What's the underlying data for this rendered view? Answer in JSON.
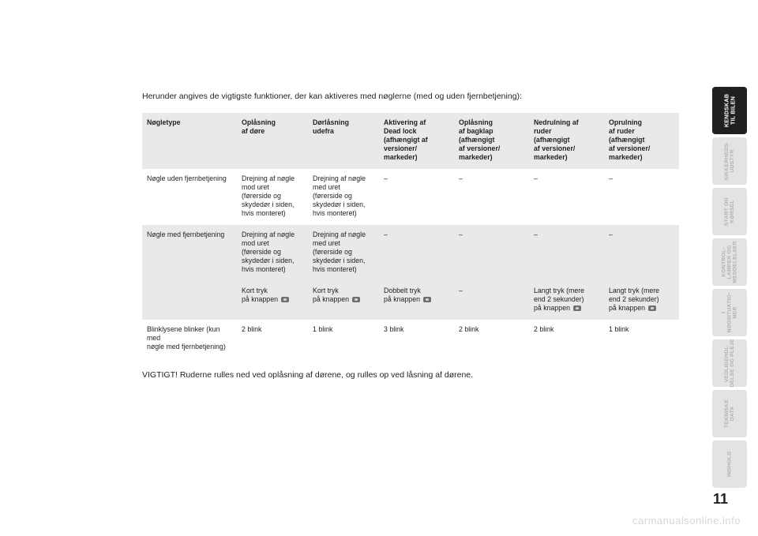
{
  "intro": "Herunder angives de vigtigste funktioner, der kan aktiveres med nøglerne (med og uden fjernbetjening):",
  "outro": "VIGTIGT! Ruderne rulles ned ved oplåsning af dørene, og rulles op ved låsning af dørene.",
  "page_number": "11",
  "watermark": "carmanualsonline.info",
  "table": {
    "headers": [
      "Nøgletype",
      "Oplåsning\naf døre",
      "Dørlåsning\nudefra",
      "Aktivering af\nDead lock\n(afhængigt af\nversioner/\nmarkeder)",
      "Oplåsning\naf bagklap\n(afhængigt\naf versioner/\nmarkeder)",
      "Nedrulning af\nruder\n(afhængigt\naf versioner/\nmarkeder)",
      "Oprulning\naf ruder\n(afhængigt\naf versioner/\nmarkeder)"
    ],
    "rows": [
      {
        "label": "Nøgle uden fjernbetjening",
        "cells": [
          "Drejning af nøgle\nmod uret\n(førerside og\nskydedør i siden,\nhvis monteret)",
          "Drejning af nøgle\nmed uret\n(førerside og\nskydedør i siden,\nhvis monteret)",
          "–",
          "–",
          "–",
          "–"
        ]
      },
      {
        "label": "",
        "cells": [
          "Drejning af nøgle\nmod uret\n(førerside og\nskydedør i siden,\nhvis monteret)",
          "Drejning af nøgle\nmed uret\n(førerside og\nskydedør i siden,\nhvis monteret)",
          "–",
          "–",
          "–",
          "–"
        ]
      },
      {
        "label": "Nøgle med fjernbetjening",
        "cells": [
          "Kort tryk\npå knappen",
          "Kort tryk\npå knappen",
          "Dobbelt tryk\npå knappen",
          "–",
          "Langt tryk (mere\nend 2 sekunder)\npå knappen",
          "Langt tryk (mere\nend 2 sekunder)\npå knappen"
        ],
        "has_icons": true
      },
      {
        "label": "Blinklysene blinker (kun med\nnøgle med fjernbetjening)",
        "cells": [
          "2 blink",
          "1 blink",
          "3 blink",
          "2 blink",
          "2 blink",
          "1 blink"
        ]
      }
    ]
  },
  "tabs": [
    {
      "label": "KENDSKAB\nTIL BILEN",
      "active": true
    },
    {
      "label": "SIKKERHEDS-\nUDSTYR",
      "active": false
    },
    {
      "label": "START OG\nKØRSEL",
      "active": false
    },
    {
      "label": "KONTROL-\nLAMPER OG\nMEDDELELSER",
      "active": false
    },
    {
      "label": "I\nNØDSITUATIO-\nNER",
      "active": false
    },
    {
      "label": "VEDLIGEHOL-\nDELSE OG PLEJE",
      "active": false
    },
    {
      "label": "TEKNISKE\nDATA",
      "active": false
    },
    {
      "label": "INDHOLD",
      "active": false
    }
  ]
}
